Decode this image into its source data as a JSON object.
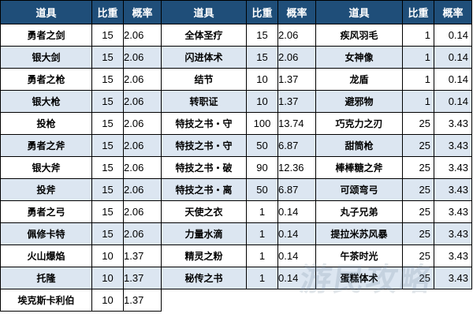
{
  "headers": [
    "道具",
    "比重",
    "概率",
    "道具",
    "比重",
    "概率",
    "道具",
    "比重",
    "概率"
  ],
  "rows": [
    [
      [
        "勇者之剑",
        "15",
        "2.06"
      ],
      [
        "全体圣疗",
        "15",
        "2.06"
      ],
      [
        "疾风羽毛",
        "1",
        "0.14"
      ]
    ],
    [
      [
        "银大剑",
        "15",
        "2.06"
      ],
      [
        "闪进体术",
        "15",
        "2.06"
      ],
      [
        "女神像",
        "1",
        "0.14"
      ]
    ],
    [
      [
        "勇者之枪",
        "15",
        "2.06"
      ],
      [
        "结节",
        "10",
        "1.37"
      ],
      [
        "龙盾",
        "1",
        "0.14"
      ]
    ],
    [
      [
        "银大枪",
        "15",
        "2.06"
      ],
      [
        "转职证",
        "10",
        "1.37"
      ],
      [
        "避邪物",
        "1",
        "0.14"
      ]
    ],
    [
      [
        "投枪",
        "15",
        "2.06"
      ],
      [
        "特技之书・守",
        "100",
        "13.74"
      ],
      [
        "巧克力之刃",
        "25",
        "3.43"
      ]
    ],
    [
      [
        "勇者之斧",
        "15",
        "2.06"
      ],
      [
        "特技之书・守",
        "50",
        "6.87"
      ],
      [
        "甜筒枪",
        "25",
        "3.43"
      ]
    ],
    [
      [
        "银大斧",
        "15",
        "2.06"
      ],
      [
        "特技之书・破",
        "90",
        "12.36"
      ],
      [
        "棒棒糖之斧",
        "25",
        "3.43"
      ]
    ],
    [
      [
        "投斧",
        "15",
        "2.06"
      ],
      [
        "特技之书・离",
        "50",
        "6.87"
      ],
      [
        "可颂弯弓",
        "25",
        "3.43"
      ]
    ],
    [
      [
        "勇者之弓",
        "15",
        "2.06"
      ],
      [
        "天使之衣",
        "1",
        "0.14"
      ],
      [
        "丸子兄弟",
        "25",
        "3.43"
      ]
    ],
    [
      [
        "佩修卡特",
        "15",
        "2.06"
      ],
      [
        "力量水滴",
        "1",
        "0.14"
      ],
      [
        "提拉米苏风暴",
        "25",
        "3.43"
      ]
    ],
    [
      [
        "火山爆焰",
        "10",
        "1.37"
      ],
      [
        "精灵之粉",
        "1",
        "0.14"
      ],
      [
        "午茶时光",
        "25",
        "3.43"
      ]
    ],
    [
      [
        "托隆",
        "10",
        "1.37"
      ],
      [
        "秘传之书",
        "1",
        "0.14"
      ],
      [
        "蛋糕体术",
        "25",
        "3.43"
      ]
    ],
    [
      [
        "埃克斯卡利伯",
        "10",
        "1.37"
      ],
      null,
      null
    ]
  ],
  "watermark": "游民攻略"
}
